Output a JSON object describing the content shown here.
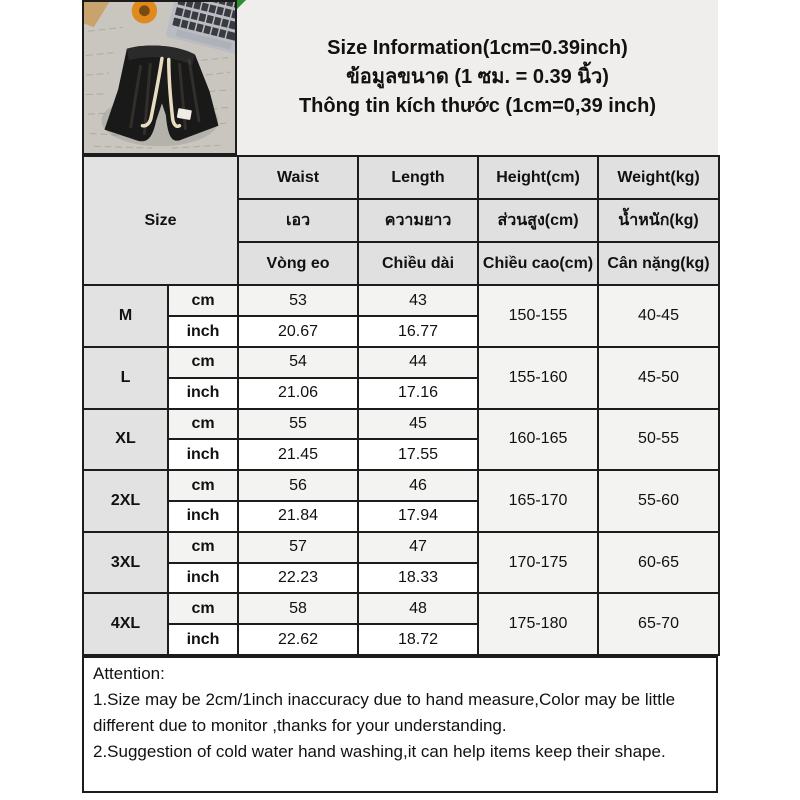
{
  "colors": {
    "border_color": "#1c1c1c",
    "text_color": "#111111",
    "panel_bg": "#efeeec",
    "header_cell_bg": "#e0e0e0",
    "size_cell_bg": "#e2e2e2",
    "cm_row_bg": "#f3f3f2",
    "inch_row_bg": "#ffffff",
    "green_corner": "#2f8f2f",
    "shorts_color": "#191919",
    "drawstring_color": "#e8dcc0"
  },
  "title": {
    "en": "Size Information(1cm=0.39inch)",
    "th": "ข้อมูลขนาด (1 ซม. = 0.39 นิ้ว)",
    "vi": "Thông tin kích thước (1cm=0,39 inch)"
  },
  "table": {
    "size_header": "Size",
    "unit_labels": {
      "cm": "cm",
      "inch": "inch"
    },
    "columns": [
      {
        "en": "Waist",
        "th": "เอว",
        "vi": "Vòng eo"
      },
      {
        "en": "Length",
        "th": "ความยาว",
        "vi": "Chiều dài"
      },
      {
        "en": "Height(cm)",
        "th": "ส่วนสูง(cm)",
        "vi": "Chiều cao(cm)"
      },
      {
        "en": "Weight(kg)",
        "th": "น้ำหนัก(kg)",
        "vi": "Cân nặng(kg)"
      }
    ],
    "rows": [
      {
        "size": "M",
        "waist_cm": "53",
        "length_cm": "43",
        "waist_inch": "20.67",
        "length_inch": "16.77",
        "height": "150-155",
        "weight": "40-45"
      },
      {
        "size": "L",
        "waist_cm": "54",
        "length_cm": "44",
        "waist_inch": "21.06",
        "length_inch": "17.16",
        "height": "155-160",
        "weight": "45-50"
      },
      {
        "size": "XL",
        "waist_cm": "55",
        "length_cm": "45",
        "waist_inch": "21.45",
        "length_inch": "17.55",
        "height": "160-165",
        "weight": "50-55"
      },
      {
        "size": "2XL",
        "waist_cm": "56",
        "length_cm": "46",
        "waist_inch": "21.84",
        "length_inch": "17.94",
        "height": "165-170",
        "weight": "55-60"
      },
      {
        "size": "3XL",
        "waist_cm": "57",
        "length_cm": "47",
        "waist_inch": "22.23",
        "length_inch": "18.33",
        "height": "170-175",
        "weight": "60-65"
      },
      {
        "size": "4XL",
        "waist_cm": "58",
        "length_cm": "48",
        "waist_inch": "22.62",
        "length_inch": "18.72",
        "height": "175-180",
        "weight": "65-70"
      }
    ]
  },
  "attention": {
    "heading": "Attention:",
    "lines": [
      "1.Size may be 2cm/1inch inaccuracy due to hand measure,Color may be little different due to monitor ,thanks for your understanding.",
      "2.Suggestion of cold water hand washing,it can help items keep their shape."
    ]
  }
}
